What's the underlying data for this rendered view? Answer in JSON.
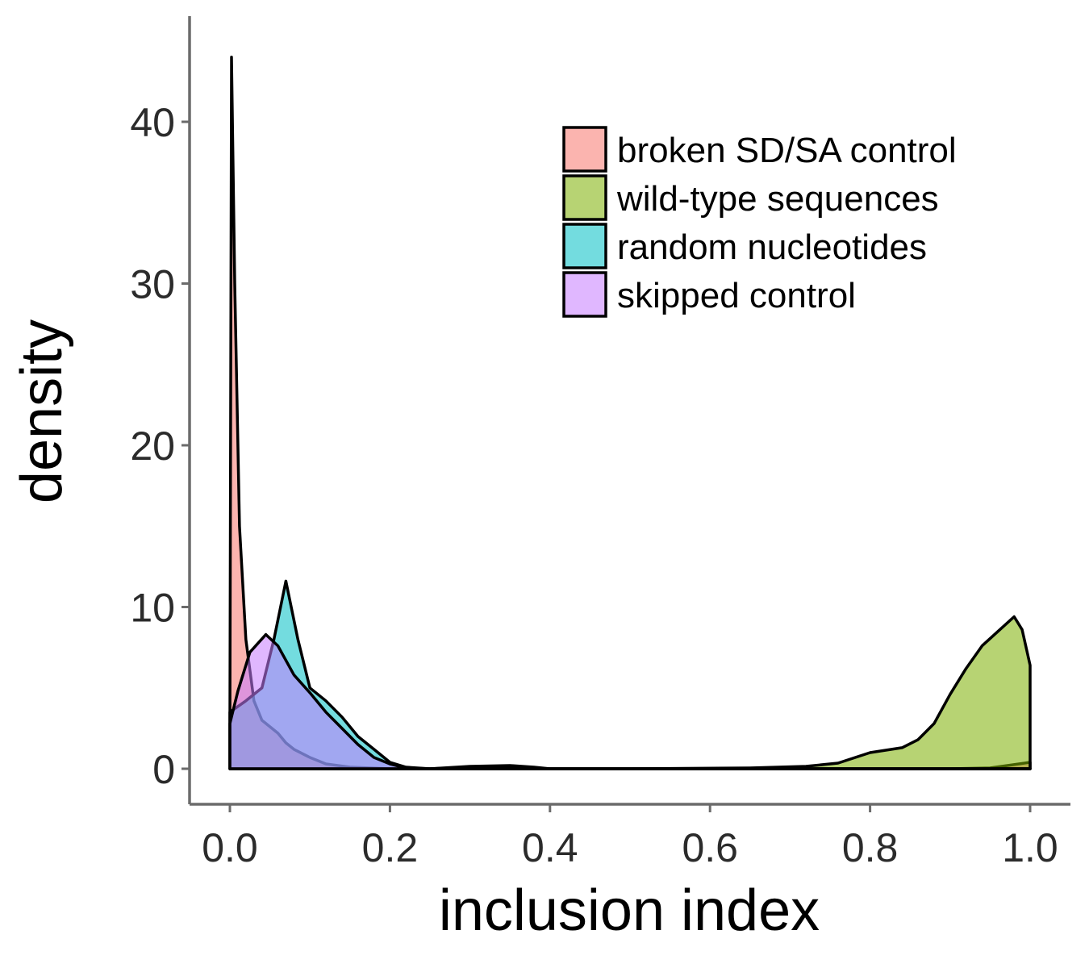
{
  "chart_data": {
    "type": "area",
    "title": "",
    "xlabel": "inclusion index",
    "ylabel": "density",
    "xlim": [
      0,
      1
    ],
    "ylim": [
      0,
      45
    ],
    "xticks": [
      0.0,
      0.2,
      0.4,
      0.6,
      0.8,
      1.0
    ],
    "xtick_labels": [
      "0.0",
      "0.2",
      "0.4",
      "0.6",
      "0.8",
      "1.0"
    ],
    "yticks": [
      0,
      10,
      20,
      30,
      40
    ],
    "ytick_labels": [
      "0",
      "10",
      "20",
      "30",
      "40"
    ],
    "grid": false,
    "legend_position": "top-right",
    "series": [
      {
        "name": "broken SD/SA control",
        "color": "#F8766D",
        "points": [
          [
            0.0,
            3.0
          ],
          [
            0.002,
            44.0
          ],
          [
            0.006,
            30.0
          ],
          [
            0.012,
            15.0
          ],
          [
            0.02,
            8.0
          ],
          [
            0.03,
            4.2
          ],
          [
            0.04,
            3.0
          ],
          [
            0.05,
            2.6
          ],
          [
            0.06,
            2.2
          ],
          [
            0.07,
            1.6
          ],
          [
            0.08,
            1.2
          ],
          [
            0.1,
            0.7
          ],
          [
            0.12,
            0.3
          ],
          [
            0.15,
            0.1
          ],
          [
            0.2,
            0.0
          ],
          [
            0.5,
            0.0
          ],
          [
            0.8,
            0.0
          ],
          [
            0.9,
            0.0
          ],
          [
            0.95,
            0.05
          ],
          [
            1.0,
            0.4
          ]
        ]
      },
      {
        "name": "wild-type sequences",
        "color": "#7CAE00",
        "points": [
          [
            0.0,
            0.0
          ],
          [
            0.5,
            0.0
          ],
          [
            0.65,
            0.05
          ],
          [
            0.72,
            0.15
          ],
          [
            0.76,
            0.35
          ],
          [
            0.8,
            1.0
          ],
          [
            0.84,
            1.3
          ],
          [
            0.86,
            1.8
          ],
          [
            0.88,
            2.8
          ],
          [
            0.9,
            4.6
          ],
          [
            0.92,
            6.2
          ],
          [
            0.94,
            7.6
          ],
          [
            0.96,
            8.5
          ],
          [
            0.98,
            9.4
          ],
          [
            0.99,
            8.6
          ],
          [
            1.0,
            6.4
          ]
        ]
      },
      {
        "name": "random nucleotides",
        "color": "#00BFC4",
        "points": [
          [
            0.0,
            3.5
          ],
          [
            0.02,
            4.2
          ],
          [
            0.04,
            5.0
          ],
          [
            0.055,
            8.0
          ],
          [
            0.07,
            11.6
          ],
          [
            0.085,
            8.0
          ],
          [
            0.1,
            5.0
          ],
          [
            0.12,
            4.2
          ],
          [
            0.14,
            3.2
          ],
          [
            0.16,
            2.0
          ],
          [
            0.18,
            1.2
          ],
          [
            0.2,
            0.4
          ],
          [
            0.22,
            0.1
          ],
          [
            0.25,
            0.0
          ],
          [
            0.3,
            0.15
          ],
          [
            0.35,
            0.2
          ],
          [
            0.38,
            0.1
          ],
          [
            0.4,
            0.0
          ],
          [
            1.0,
            0.0
          ]
        ]
      },
      {
        "name": "skipped control",
        "color": "#C77CFF",
        "points": [
          [
            0.0,
            2.8
          ],
          [
            0.01,
            4.8
          ],
          [
            0.025,
            7.2
          ],
          [
            0.045,
            8.3
          ],
          [
            0.06,
            7.6
          ],
          [
            0.08,
            5.8
          ],
          [
            0.1,
            4.7
          ],
          [
            0.12,
            3.5
          ],
          [
            0.14,
            2.5
          ],
          [
            0.16,
            1.5
          ],
          [
            0.18,
            0.7
          ],
          [
            0.2,
            0.3
          ],
          [
            0.22,
            0.05
          ],
          [
            0.25,
            0.0
          ],
          [
            0.3,
            0.1
          ],
          [
            0.35,
            0.1
          ],
          [
            0.4,
            0.0
          ],
          [
            1.0,
            0.0
          ]
        ]
      }
    ]
  }
}
